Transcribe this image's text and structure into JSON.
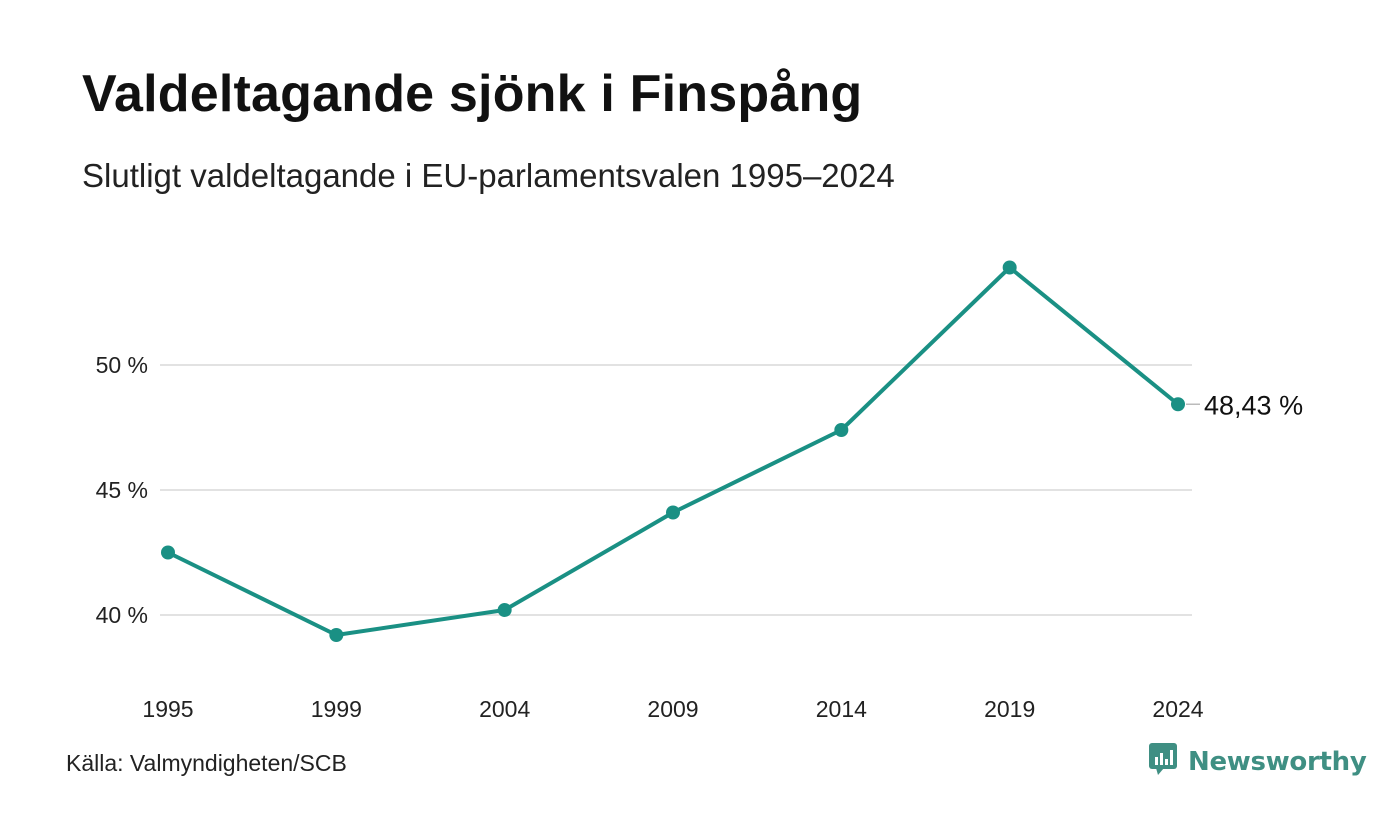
{
  "header": {
    "title": "Valdeltagande sjönk i Finspång",
    "subtitle": "Slutligt valdeltagande i EU-parlamentsvalen 1995–2024"
  },
  "footer": {
    "source": "Källa: Valmyndigheten/SCB",
    "brand": "Newsworthy",
    "brand_icon": "newsworthy-logo-icon"
  },
  "colors": {
    "line": "#1a9084",
    "grid": "#e2e2e2",
    "brand": "#3f8f83"
  },
  "chart_data": {
    "type": "line",
    "x": [
      "1995",
      "1999",
      "2004",
      "2009",
      "2014",
      "2019",
      "2024"
    ],
    "series": [
      {
        "values": [
          42.5,
          39.2,
          40.2,
          44.1,
          47.4,
          53.9,
          48.43
        ]
      }
    ],
    "ylim": [
      38.2,
      55
    ],
    "yticks": [
      40,
      45,
      50
    ],
    "ytick_labels": [
      "40 %",
      "45 %",
      "50 %"
    ],
    "end_label": "48,43 %",
    "grid": true,
    "legend": "none",
    "xlabel": "",
    "ylabel": ""
  }
}
